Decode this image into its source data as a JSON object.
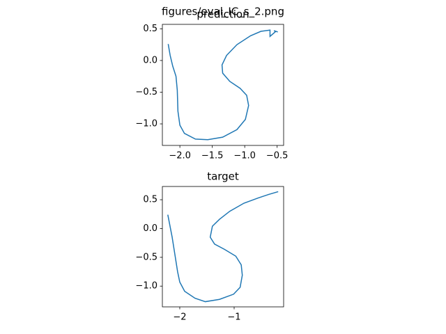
{
  "title": "figures/eval_IC_s_2.png",
  "chart_data": [
    {
      "type": "line",
      "title": "prediction",
      "color": "#1f77b4",
      "x": [
        -2.18,
        -2.15,
        -2.11,
        -2.06,
        -2.04,
        -2.03,
        -2.0,
        -1.93,
        -1.76,
        -1.57,
        -1.34,
        -1.12,
        -0.99,
        -0.94,
        -0.97,
        -1.07,
        -1.23,
        -1.34,
        -1.35,
        -1.28,
        -1.12,
        -0.91,
        -0.75,
        -0.61,
        -0.61,
        -0.52,
        -0.49,
        -0.55
      ],
      "values": [
        0.26,
        0.08,
        -0.09,
        -0.25,
        -0.47,
        -0.8,
        -1.02,
        -1.15,
        -1.24,
        -1.25,
        -1.21,
        -1.09,
        -0.93,
        -0.71,
        -0.55,
        -0.44,
        -0.33,
        -0.2,
        -0.07,
        0.08,
        0.25,
        0.39,
        0.46,
        0.48,
        0.38,
        0.46,
        0.45,
        0.47
      ],
      "xlim": [
        -2.27,
        -0.4
      ],
      "ylim": [
        -1.34,
        0.57
      ],
      "xticks": [
        {
          "value": -2.0,
          "label": "−2.0"
        },
        {
          "value": -1.5,
          "label": "−1.5"
        },
        {
          "value": -1.0,
          "label": "−1.0"
        },
        {
          "value": -0.5,
          "label": "−0.5"
        }
      ],
      "yticks": [
        0.5,
        {
          "value": 0,
          "label": "0.0"
        },
        {
          "value": -0.5,
          "label": "−0.5"
        },
        {
          "value": -1.0,
          "label": "−1.0"
        }
      ]
    },
    {
      "type": "line",
      "title": "target",
      "color": "#1f77b4",
      "x": [
        -2.22,
        -2.14,
        -2.08,
        -2.04,
        -2.0,
        -1.91,
        -1.72,
        -1.53,
        -1.27,
        -1.01,
        -0.89,
        -0.85,
        -0.87,
        -0.97,
        -1.18,
        -1.36,
        -1.44,
        -1.4,
        -1.27,
        -1.08,
        -0.82,
        -0.56,
        -0.37,
        -0.19
      ],
      "values": [
        0.24,
        -0.15,
        -0.51,
        -0.75,
        -0.93,
        -1.09,
        -1.21,
        -1.27,
        -1.23,
        -1.14,
        -1.02,
        -0.81,
        -0.63,
        -0.48,
        -0.36,
        -0.27,
        -0.15,
        0.04,
        0.16,
        0.3,
        0.44,
        0.53,
        0.59,
        0.64
      ],
      "xlim": [
        -2.32,
        -0.09
      ],
      "ylim": [
        -1.36,
        0.73
      ],
      "xticks": [
        {
          "value": -2,
          "label": "−2"
        },
        {
          "value": -1,
          "label": "−1"
        }
      ],
      "yticks": [
        0.5,
        {
          "value": 0,
          "label": "0.0"
        },
        {
          "value": -0.5,
          "label": "−0.5"
        },
        {
          "value": -1.0,
          "label": "−1.0"
        }
      ]
    }
  ]
}
